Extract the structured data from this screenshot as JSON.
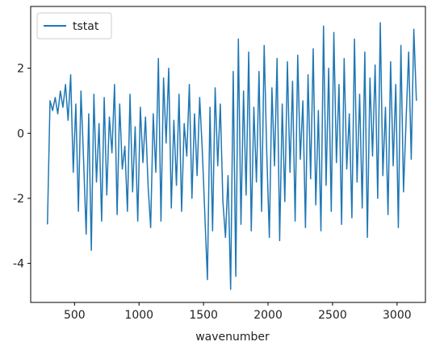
{
  "chart_data": {
    "type": "line",
    "x_label": "wavenumber",
    "x": [
      290,
      310,
      330,
      350,
      370,
      390,
      410,
      430,
      450,
      470,
      490,
      510,
      530,
      550,
      570,
      590,
      610,
      630,
      650,
      670,
      690,
      710,
      730,
      750,
      770,
      790,
      810,
      830,
      850,
      870,
      890,
      910,
      930,
      950,
      970,
      990,
      1010,
      1030,
      1050,
      1070,
      1090,
      1110,
      1130,
      1150,
      1170,
      1190,
      1210,
      1230,
      1250,
      1270,
      1290,
      1310,
      1330,
      1350,
      1370,
      1390,
      1410,
      1430,
      1450,
      1470,
      1490,
      1510,
      1530,
      1550,
      1570,
      1590,
      1610,
      1630,
      1650,
      1670,
      1690,
      1710,
      1730,
      1750,
      1770,
      1790,
      1810,
      1830,
      1850,
      1870,
      1890,
      1910,
      1930,
      1950,
      1970,
      1990,
      2010,
      2030,
      2050,
      2070,
      2090,
      2110,
      2130,
      2150,
      2170,
      2190,
      2210,
      2230,
      2250,
      2270,
      2290,
      2310,
      2330,
      2350,
      2370,
      2390,
      2410,
      2430,
      2450,
      2470,
      2490,
      2510,
      2530,
      2550,
      2570,
      2590,
      2610,
      2630,
      2650,
      2670,
      2690,
      2710,
      2730,
      2750,
      2770,
      2790,
      2810,
      2830,
      2850,
      2870,
      2890,
      2910,
      2930,
      2950,
      2970,
      2990,
      3010,
      3030,
      3050,
      3070,
      3090,
      3110,
      3130,
      3150
    ],
    "series": [
      {
        "name": "tstat",
        "color": "#1f77b4",
        "values": [
          -2.8,
          1.0,
          0.7,
          1.1,
          0.6,
          1.3,
          0.8,
          1.5,
          0.4,
          1.8,
          -1.2,
          0.9,
          -2.4,
          1.3,
          -0.8,
          -3.1,
          0.6,
          -3.6,
          1.2,
          -1.5,
          0.3,
          -2.7,
          1.1,
          -1.9,
          0.5,
          -0.6,
          1.5,
          -2.5,
          0.9,
          -1.1,
          -0.4,
          -2.4,
          1.2,
          -1.8,
          0.2,
          -2.7,
          0.8,
          -0.9,
          0.5,
          -1.6,
          -2.9,
          0.6,
          -1.2,
          2.3,
          -2.7,
          1.7,
          -0.3,
          2.0,
          -2.3,
          0.4,
          -1.6,
          1.2,
          -2.4,
          0.3,
          -0.7,
          1.5,
          -2.0,
          0.6,
          -1.3,
          1.1,
          -0.5,
          -2.5,
          -4.5,
          0.8,
          -3.0,
          1.4,
          -1.0,
          0.9,
          -2.1,
          -3.2,
          -1.3,
          -4.8,
          1.9,
          -4.4,
          2.9,
          -2.8,
          1.3,
          -1.9,
          2.5,
          -3.0,
          0.8,
          -1.5,
          1.9,
          -2.4,
          2.7,
          -0.6,
          -3.2,
          1.4,
          -1.0,
          2.3,
          -3.3,
          0.9,
          -2.1,
          2.2,
          -1.2,
          1.6,
          -2.7,
          2.4,
          -0.8,
          1.0,
          -2.9,
          1.8,
          -1.4,
          2.6,
          -2.2,
          0.7,
          -3.0,
          3.3,
          -1.6,
          2.0,
          -2.4,
          3.1,
          -0.9,
          1.5,
          -2.8,
          2.3,
          -1.1,
          0.6,
          -2.6,
          2.9,
          -1.5,
          1.2,
          -2.3,
          2.5,
          -3.2,
          1.7,
          -0.7,
          2.1,
          -2.0,
          3.4,
          -1.3,
          0.8,
          -2.5,
          2.2,
          -1.0,
          1.5,
          -2.9,
          2.7,
          -1.8,
          0.4,
          2.5,
          -0.8,
          3.2,
          1.0
        ]
      }
    ],
    "xlim": [
      160,
      3220
    ],
    "xticks": [
      500,
      1000,
      1500,
      2000,
      2500,
      3000
    ],
    "ylim": [
      -5.2,
      3.9
    ],
    "yticks": [
      -4,
      -2,
      0,
      2
    ],
    "grid": false,
    "legend": "upper left"
  }
}
